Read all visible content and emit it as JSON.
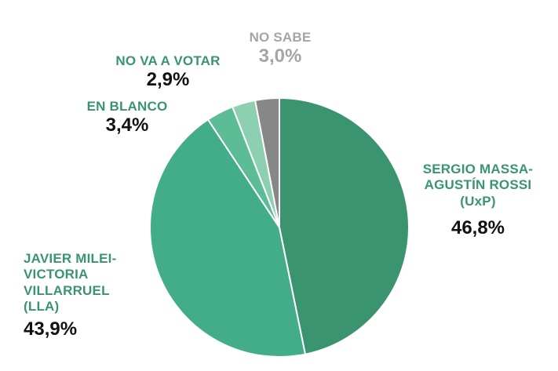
{
  "chart_data": {
    "type": "pie",
    "title": "",
    "slices": [
      {
        "label_lines": [
          "SERGIO MASSA-",
          "AGUSTÍN ROSSI",
          "(UxP)"
        ],
        "value": 46.8,
        "value_label": "46,8%",
        "color": "#3a9470",
        "label_color": "#3a9470"
      },
      {
        "label_lines": [
          "JAVIER MILEI-",
          "VICTORIA",
          "VILLARRUEL",
          "(LLA)"
        ],
        "value": 43.9,
        "value_label": "43,9%",
        "color": "#42ad88",
        "label_color": "#3a9470"
      },
      {
        "label_lines": [
          "EN BLANCO"
        ],
        "value": 3.4,
        "value_label": "3,4%",
        "color": "#5cbc96",
        "label_color": "#3a9470"
      },
      {
        "label_lines": [
          "NO VA A VOTAR"
        ],
        "value": 2.9,
        "value_label": "2,9%",
        "color": "#8ccfb1",
        "label_color": "#3a9470"
      },
      {
        "label_lines": [
          "NO SABE"
        ],
        "value": 3.0,
        "value_label": "3,0%",
        "color": "#878787",
        "label_color": "#a5a5a5",
        "value_color": "#a5a5a5"
      }
    ]
  }
}
